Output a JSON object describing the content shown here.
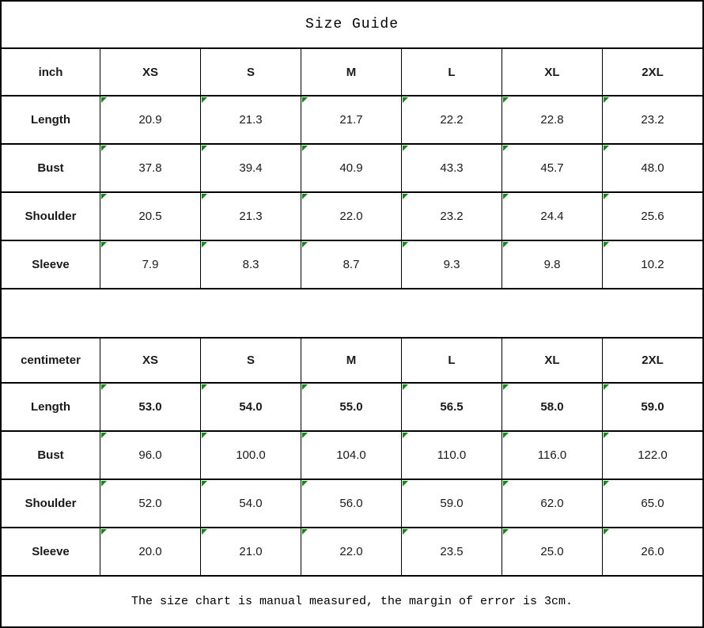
{
  "chart_data": {
    "type": "table",
    "title": "Size Guide",
    "footnote": "The size chart is manual measured, the margin of error is 3cm.",
    "colors": {
      "border": "#000000",
      "cell_marker_green": "#0e8a12",
      "text": "#000000",
      "background": "#ffffff"
    },
    "tables": [
      {
        "unit": "inch",
        "columns": [
          "XS",
          "S",
          "M",
          "L",
          "XL",
          "2XL"
        ],
        "rows": [
          {
            "label": "Length",
            "bold": false,
            "values": [
              "20.9",
              "21.3",
              "21.7",
              "22.2",
              "22.8",
              "23.2"
            ]
          },
          {
            "label": "Bust",
            "bold": false,
            "values": [
              "37.8",
              "39.4",
              "40.9",
              "43.3",
              "45.7",
              "48.0"
            ]
          },
          {
            "label": "Shoulder",
            "bold": false,
            "values": [
              "20.5",
              "21.3",
              "22.0",
              "23.2",
              "24.4",
              "25.6"
            ]
          },
          {
            "label": "Sleeve",
            "bold": false,
            "values": [
              "7.9",
              "8.3",
              "8.7",
              "9.3",
              "9.8",
              "10.2"
            ]
          }
        ]
      },
      {
        "unit": "centimeter",
        "columns": [
          "XS",
          "S",
          "M",
          "L",
          "XL",
          "2XL"
        ],
        "rows": [
          {
            "label": "Length",
            "bold": true,
            "values": [
              "53.0",
              "54.0",
              "55.0",
              "56.5",
              "58.0",
              "59.0"
            ]
          },
          {
            "label": "Bust",
            "bold": false,
            "values": [
              "96.0",
              "100.0",
              "104.0",
              "110.0",
              "116.0",
              "122.0"
            ]
          },
          {
            "label": "Shoulder",
            "bold": false,
            "values": [
              "52.0",
              "54.0",
              "56.0",
              "59.0",
              "62.0",
              "65.0"
            ]
          },
          {
            "label": "Sleeve",
            "bold": false,
            "values": [
              "20.0",
              "21.0",
              "22.0",
              "23.5",
              "25.0",
              "26.0"
            ]
          }
        ]
      }
    ]
  }
}
